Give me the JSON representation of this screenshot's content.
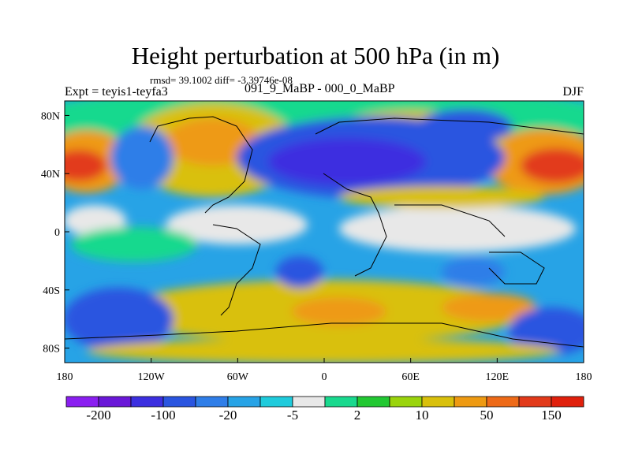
{
  "title": "Height perturbation at 500 hPa (in m)",
  "stats_line": "rmsd= 39.1002 diff= -3.39746e-08",
  "left_label": "Expt = teyis1-teyfa3",
  "center_label": "091_9_MaBP - 000_0_MaBP",
  "right_label": "DJF",
  "colors": {
    "levels": [
      "#8a1ef0",
      "#6a18d8",
      "#3c2fe0",
      "#2a55e0",
      "#2f7ee8",
      "#27a3e6",
      "#1fcbdc",
      "#e8e8e8",
      "#19d98e",
      "#22c832",
      "#9ad40c",
      "#d9c00c",
      "#ee9a12",
      "#ee6a18",
      "#e23a1a",
      "#e0200c"
    ]
  },
  "chart_data": {
    "type": "heatmap",
    "lon_ticks": [
      {
        "lon": -180,
        "label": "180"
      },
      {
        "lon": -120,
        "label": "120W"
      },
      {
        "lon": -60,
        "label": "60W"
      },
      {
        "lon": 0,
        "label": "0"
      },
      {
        "lon": 60,
        "label": "60E"
      },
      {
        "lon": 120,
        "label": "120E"
      },
      {
        "lon": 180,
        "label": "180"
      }
    ],
    "lat_ticks": [
      {
        "lat": 80,
        "label": "80N"
      },
      {
        "lat": 40,
        "label": "40N"
      },
      {
        "lat": 0,
        "label": "0"
      },
      {
        "lat": -40,
        "label": "40S"
      },
      {
        "lat": -80,
        "label": "80S"
      }
    ],
    "xlim": [
      -180,
      180
    ],
    "ylim": [
      -90,
      90
    ],
    "colorbar_labels": [
      "-200",
      "-100",
      "-20",
      "-5",
      "2",
      "10",
      "50",
      "150"
    ]
  }
}
